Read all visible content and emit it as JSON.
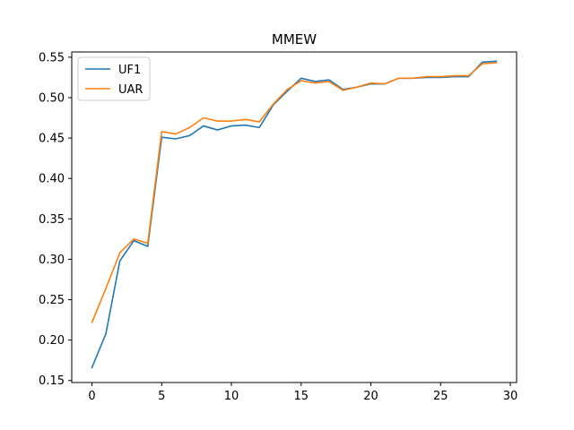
{
  "chart_data": {
    "type": "line",
    "title": "MMEW",
    "xlabel": "",
    "ylabel": "",
    "xlim": [
      -1.45,
      30.45
    ],
    "ylim": [
      0.1475,
      0.5565
    ],
    "xticks": [
      0,
      5,
      10,
      15,
      20,
      25,
      30
    ],
    "yticks": [
      0.15,
      0.2,
      0.25,
      0.3,
      0.35,
      0.4,
      0.45,
      0.5,
      0.55
    ],
    "ytick_labels": [
      "0.15",
      "0.20",
      "0.25",
      "0.30",
      "0.35",
      "0.40",
      "0.45",
      "0.50",
      "0.55"
    ],
    "xtick_labels": [
      "0",
      "5",
      "10",
      "15",
      "20",
      "25",
      "30"
    ],
    "grid": false,
    "legend_position": "top-left",
    "x": [
      0,
      1,
      2,
      3,
      4,
      5,
      6,
      7,
      8,
      9,
      10,
      11,
      12,
      13,
      14,
      15,
      16,
      17,
      18,
      19,
      20,
      21,
      22,
      23,
      24,
      25,
      26,
      27,
      28,
      29
    ],
    "series": [
      {
        "name": "UF1",
        "color": "#1f77b4",
        "values": [
          0.166,
          0.208,
          0.298,
          0.323,
          0.316,
          0.451,
          0.449,
          0.453,
          0.465,
          0.46,
          0.465,
          0.466,
          0.463,
          0.491,
          0.508,
          0.524,
          0.52,
          0.522,
          0.51,
          0.513,
          0.517,
          0.517,
          0.524,
          0.524,
          0.525,
          0.525,
          0.526,
          0.526,
          0.544,
          0.545
        ]
      },
      {
        "name": "UAR",
        "color": "#ff7f0e",
        "values": [
          0.222,
          0.264,
          0.308,
          0.325,
          0.32,
          0.458,
          0.455,
          0.463,
          0.475,
          0.471,
          0.471,
          0.473,
          0.47,
          0.492,
          0.51,
          0.521,
          0.518,
          0.52,
          0.509,
          0.513,
          0.518,
          0.517,
          0.524,
          0.524,
          0.526,
          0.526,
          0.527,
          0.527,
          0.542,
          0.543
        ]
      }
    ]
  }
}
